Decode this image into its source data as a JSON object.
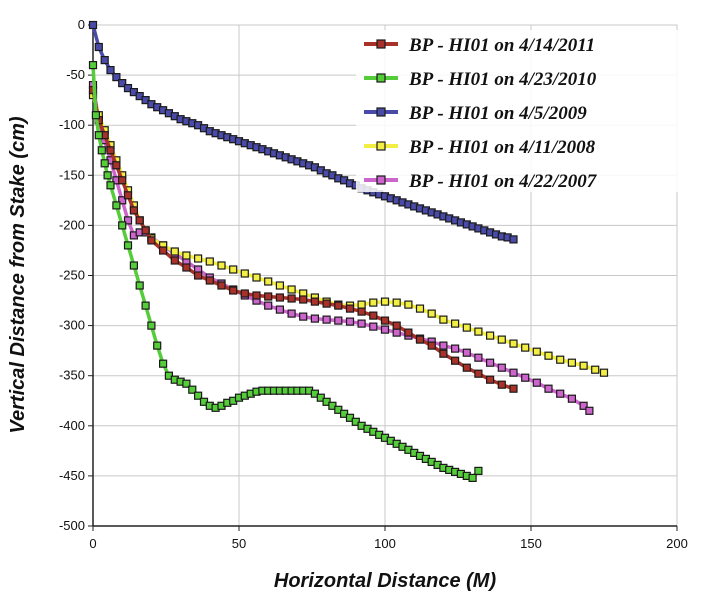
{
  "chart_data": {
    "type": "line",
    "title": "",
    "xlabel": "Horizontal Distance (M)",
    "ylabel": "Vertical Distance from Stake (cm)",
    "xlim": [
      0,
      200
    ],
    "ylim": [
      -500,
      0
    ],
    "xticks": [
      0,
      50,
      100,
      150,
      200
    ],
    "yticks": [
      0,
      -50,
      -100,
      -150,
      -200,
      -250,
      -300,
      -350,
      -400,
      -450,
      -500
    ],
    "grid": true,
    "legend_position": "top-right",
    "series": [
      {
        "name": "BP - HI01 on 4/14/2011",
        "color": "#a8312a",
        "marker": "square",
        "x": [
          0,
          2,
          4,
          6,
          8,
          10,
          12,
          14,
          16,
          18,
          20,
          24,
          28,
          32,
          36,
          40,
          44,
          48,
          52,
          56,
          60,
          64,
          68,
          72,
          76,
          80,
          84,
          88,
          92,
          96,
          100,
          104,
          108,
          112,
          116,
          120,
          124,
          128,
          132,
          136,
          140,
          144
        ],
        "y": [
          -65,
          -95,
          -110,
          -125,
          -140,
          -155,
          -170,
          -185,
          -195,
          -205,
          -215,
          -225,
          -235,
          -242,
          -250,
          -255,
          -260,
          -265,
          -268,
          -270,
          -271,
          -272,
          -273,
          -274,
          -276,
          -278,
          -280,
          -283,
          -286,
          -290,
          -295,
          -300,
          -307,
          -314,
          -320,
          -328,
          -335,
          -342,
          -348,
          -354,
          -359,
          -363
        ]
      },
      {
        "name": "BP - HI01 on 4/23/2010",
        "color": "#55cc3a",
        "marker": "square",
        "x": [
          0,
          1,
          2,
          3,
          4,
          5,
          6,
          8,
          10,
          12,
          14,
          16,
          18,
          20,
          22,
          24,
          26,
          28,
          30,
          32,
          34,
          36,
          38,
          40,
          42,
          44,
          46,
          48,
          50,
          52,
          54,
          56,
          58,
          60,
          62,
          64,
          66,
          68,
          70,
          72,
          74,
          76,
          78,
          80,
          82,
          84,
          86,
          88,
          90,
          92,
          94,
          96,
          98,
          100,
          102,
          104,
          106,
          108,
          110,
          112,
          114,
          116,
          118,
          120,
          122,
          124,
          126,
          128,
          130,
          132
        ],
        "y": [
          -40,
          -90,
          -110,
          -125,
          -138,
          -150,
          -160,
          -180,
          -200,
          -220,
          -240,
          -260,
          -280,
          -300,
          -320,
          -338,
          -350,
          -354,
          -356,
          -358,
          -364,
          -370,
          -376,
          -380,
          -382,
          -380,
          -377,
          -375,
          -372,
          -370,
          -368,
          -366,
          -365,
          -365,
          -365,
          -365,
          -365,
          -365,
          -365,
          -365,
          -365,
          -368,
          -372,
          -376,
          -380,
          -384,
          -388,
          -392,
          -396,
          -400,
          -403,
          -406,
          -409,
          -412,
          -415,
          -418,
          -421,
          -424,
          -427,
          -430,
          -433,
          -436,
          -439,
          -442,
          -444,
          -446,
          -448,
          -450,
          -452,
          -445
        ]
      },
      {
        "name": "BP - HI01 on 4/5/2009",
        "color": "#4a4aa8",
        "marker": "square",
        "x": [
          0,
          2,
          4,
          6,
          8,
          10,
          12,
          14,
          16,
          18,
          20,
          22,
          24,
          26,
          28,
          30,
          32,
          34,
          36,
          38,
          40,
          42,
          44,
          46,
          48,
          50,
          52,
          54,
          56,
          58,
          60,
          62,
          64,
          66,
          68,
          70,
          72,
          74,
          76,
          78,
          80,
          82,
          84,
          86,
          88,
          90,
          92,
          94,
          96,
          98,
          100,
          102,
          104,
          106,
          108,
          110,
          112,
          114,
          116,
          118,
          120,
          122,
          124,
          126,
          128,
          130,
          132,
          134,
          136,
          138,
          140,
          142,
          144
        ],
        "y": [
          0,
          -22,
          -35,
          -45,
          -52,
          -58,
          -63,
          -67,
          -71,
          -75,
          -79,
          -82,
          -85,
          -88,
          -91,
          -94,
          -96,
          -98,
          -100,
          -103,
          -106,
          -108,
          -110,
          -112,
          -114,
          -116,
          -118,
          -120,
          -122,
          -124,
          -126,
          -128,
          -130,
          -132,
          -134,
          -136,
          -138,
          -140,
          -142,
          -145,
          -148,
          -150,
          -153,
          -155,
          -158,
          -160,
          -163,
          -165,
          -167,
          -169,
          -171,
          -173,
          -175,
          -177,
          -179,
          -181,
          -183,
          -185,
          -187,
          -189,
          -191,
          -193,
          -195,
          -197,
          -199,
          -201,
          -203,
          -205,
          -207,
          -209,
          -211,
          -212,
          -214
        ]
      },
      {
        "name": "BP - HI01 on 4/11/2008",
        "color": "#f2ee44",
        "marker": "square",
        "x": [
          0,
          2,
          4,
          6,
          8,
          10,
          12,
          14,
          16,
          18,
          20,
          24,
          28,
          32,
          36,
          40,
          44,
          48,
          52,
          56,
          60,
          64,
          68,
          72,
          76,
          80,
          84,
          88,
          92,
          96,
          100,
          104,
          108,
          112,
          116,
          120,
          124,
          128,
          132,
          136,
          140,
          144,
          148,
          152,
          156,
          160,
          164,
          168,
          172,
          175
        ],
        "y": [
          -70,
          -90,
          -105,
          -120,
          -135,
          -150,
          -165,
          -180,
          -195,
          -205,
          -213,
          -220,
          -226,
          -230,
          -233,
          -236,
          -240,
          -244,
          -248,
          -252,
          -256,
          -260,
          -264,
          -268,
          -272,
          -276,
          -279,
          -280,
          -279,
          -277,
          -276,
          -277,
          -279,
          -283,
          -288,
          -294,
          -298,
          -302,
          -306,
          -310,
          -314,
          -318,
          -322,
          -326,
          -330,
          -334,
          -337,
          -340,
          -344,
          -347
        ]
      },
      {
        "name": "BP - HI01 on 4/22/2007",
        "color": "#cc66cc",
        "marker": "square",
        "x": [
          0,
          2,
          4,
          6,
          8,
          10,
          12,
          14,
          16,
          18,
          20,
          24,
          28,
          32,
          36,
          40,
          44,
          48,
          52,
          56,
          60,
          64,
          68,
          72,
          76,
          80,
          84,
          88,
          92,
          96,
          100,
          104,
          108,
          112,
          116,
          120,
          124,
          128,
          132,
          136,
          140,
          144,
          148,
          152,
          156,
          160,
          164,
          168,
          170
        ],
        "y": [
          -60,
          -95,
          -115,
          -135,
          -155,
          -175,
          -195,
          -210,
          -207,
          -207,
          -212,
          -220,
          -228,
          -236,
          -244,
          -252,
          -258,
          -264,
          -270,
          -275,
          -280,
          -284,
          -288,
          -291,
          -293,
          -294,
          -295,
          -296,
          -298,
          -301,
          -304,
          -307,
          -310,
          -313,
          -316,
          -320,
          -323,
          -327,
          -332,
          -337,
          -342,
          -347,
          -352,
          -357,
          -363,
          -368,
          -373,
          -380,
          -385
        ]
      }
    ]
  }
}
